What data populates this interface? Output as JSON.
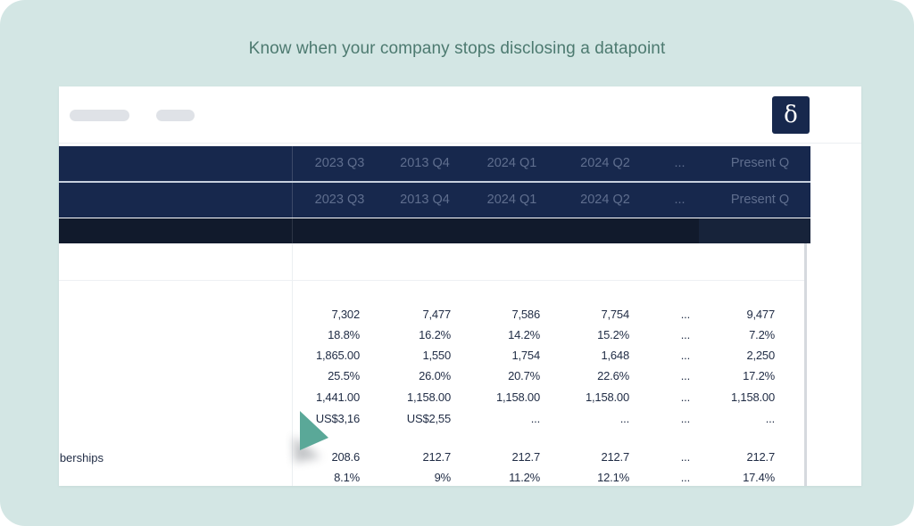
{
  "headline": "Know when your company stops disclosing a datapoint",
  "logo": {
    "glyph": "δ"
  },
  "columns": [
    "2023 Q3",
    "2013 Q4",
    "2024 Q1",
    "2024 Q2",
    "...",
    "Present Q"
  ],
  "rows": [
    {
      "label": "",
      "values": [
        "7,302",
        "7,477",
        "7,586",
        "7,754",
        "...",
        "9,477"
      ]
    },
    {
      "label": "",
      "values": [
        "18.8%",
        "16.2%",
        "14.2%",
        "15.2%",
        "...",
        "7.2%"
      ]
    },
    {
      "label": "",
      "values": [
        "1,865.00",
        "1,550",
        "1,754",
        "1,648",
        "...",
        "2,250"
      ]
    },
    {
      "label": "",
      "values": [
        "25.5%",
        "26.0%",
        "20.7%",
        "22.6%",
        "...",
        "17.2%"
      ]
    },
    {
      "label": "",
      "values": [
        "1,441.00",
        "1,158.00",
        "1,158.00",
        "1,158.00",
        "...",
        "1,158.00"
      ]
    },
    {
      "label": "",
      "values": [
        "US$3,16",
        "US$2,55",
        "...",
        "...",
        "...",
        "..."
      ]
    },
    {
      "label": "mberships",
      "values": [
        "208.6",
        "212.7",
        "212.7",
        "212.7",
        "...",
        "212.7"
      ]
    },
    {
      "label": "",
      "values": [
        "8.1%",
        "9%",
        "11.2%",
        "12.1%",
        "...",
        "17.4%"
      ]
    }
  ],
  "colors": {
    "background": "#d3e6e4",
    "header_navy": "#17284d",
    "accent_teal": "#5aa898",
    "headline_text": "#4d7a70"
  },
  "icons": {
    "cursor": "pointer-arrow-icon",
    "logo": "delta-logo-icon"
  }
}
